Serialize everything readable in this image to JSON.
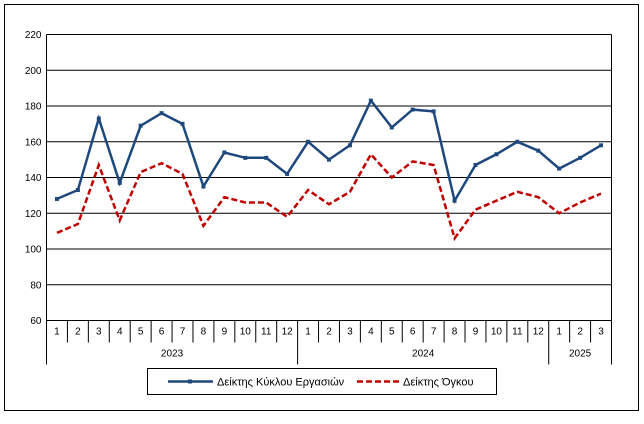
{
  "chart_data": {
    "type": "line",
    "title": "",
    "xlabel": "",
    "ylabel": "",
    "ylim": [
      60,
      220
    ],
    "yticks": [
      60,
      80,
      100,
      120,
      140,
      160,
      180,
      200,
      220
    ],
    "grid": true,
    "legend_position": "bottom",
    "months": [
      "1",
      "2",
      "3",
      "4",
      "5",
      "6",
      "7",
      "8",
      "9",
      "10",
      "11",
      "12",
      "1",
      "2",
      "3",
      "4",
      "5",
      "6",
      "7",
      "8",
      "9",
      "10",
      "11",
      "12",
      "1",
      "2",
      "3"
    ],
    "years": [
      {
        "label": "2023",
        "span": 12
      },
      {
        "label": "2024",
        "span": 12
      },
      {
        "label": "2025",
        "span": 3
      }
    ],
    "series": [
      {
        "name": "Δείκτης Κύκλου Εργασιών",
        "color": "#1f497d",
        "style": "solid",
        "values": [
          128,
          133,
          173,
          137,
          169,
          176,
          170,
          135,
          154,
          151,
          151,
          142,
          160,
          150,
          158,
          183,
          168,
          178,
          177,
          127,
          147,
          153,
          160,
          155,
          145,
          151,
          158
        ]
      },
      {
        "name": "Δείκτης Όγκου",
        "color": "#c00000",
        "style": "dashed",
        "values": [
          109,
          114,
          147,
          116,
          143,
          148,
          142,
          113,
          129,
          126,
          126,
          118,
          133,
          125,
          132,
          153,
          140,
          149,
          147,
          106,
          122,
          127,
          132,
          129,
          120,
          126,
          131
        ]
      }
    ]
  }
}
